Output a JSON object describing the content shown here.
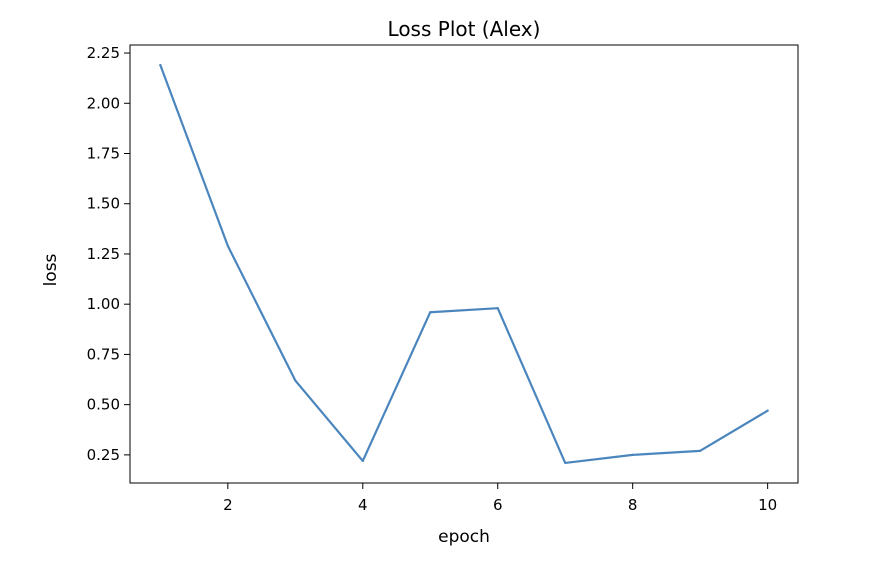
{
  "chart_data": {
    "type": "line",
    "title": "Loss Plot (Alex)",
    "xlabel": "epoch",
    "ylabel": "loss",
    "x": [
      1,
      2,
      3,
      4,
      5,
      6,
      7,
      8,
      9,
      10
    ],
    "series": [
      {
        "values": [
          2.19,
          1.29,
          0.62,
          0.22,
          0.96,
          0.98,
          0.21,
          0.25,
          0.27,
          0.47
        ],
        "color": "#4a86bd"
      }
    ],
    "xlim": [
      0.55,
      10.45
    ],
    "ylim": [
      0.11,
      2.29
    ],
    "xticks": [
      2,
      4,
      6,
      8,
      10
    ],
    "xtick_labels": [
      "2",
      "4",
      "6",
      "8",
      "10"
    ],
    "yticks": [
      0.25,
      0.5,
      0.75,
      1.0,
      1.25,
      1.5,
      1.75,
      2.0,
      2.25
    ],
    "ytick_labels": [
      "0.25",
      "0.50",
      "0.75",
      "1.00",
      "1.25",
      "1.50",
      "1.75",
      "2.00",
      "2.25"
    ],
    "grid": false,
    "legend": "none"
  }
}
